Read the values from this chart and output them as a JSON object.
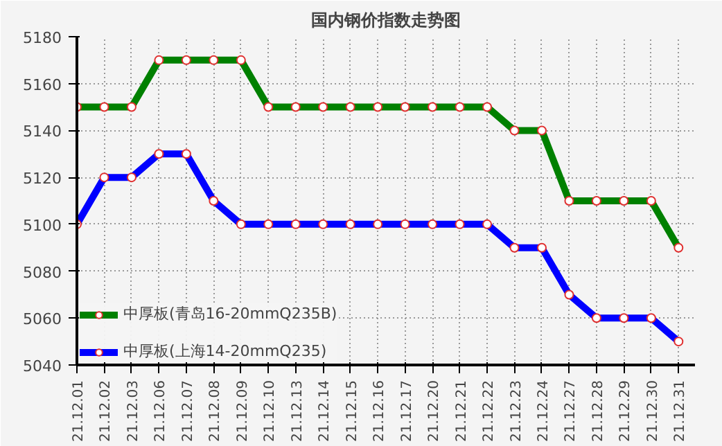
{
  "chart_data": {
    "type": "line",
    "title": "国内钢价指数走势图",
    "categories": [
      "21.12.01",
      "21.12.02",
      "21.12.03",
      "21.12.06",
      "21.12.07",
      "21.12.08",
      "21.12.09",
      "21.12.10",
      "21.12.13",
      "21.12.14",
      "21.12.15",
      "21.12.16",
      "21.12.17",
      "21.12.20",
      "21.12.21",
      "21.12.22",
      "21.12.23",
      "21.12.24",
      "21.12.27",
      "21.12.28",
      "21.12.29",
      "21.12.30",
      "21.12.31"
    ],
    "series": [
      {
        "name": "中厚板(青岛16-20mmQ235B)",
        "color": "#008000",
        "values": [
          5150,
          5150,
          5150,
          5170,
          5170,
          5170,
          5170,
          5150,
          5150,
          5150,
          5150,
          5150,
          5150,
          5150,
          5150,
          5150,
          5140,
          5140,
          5110,
          5110,
          5110,
          5110,
          5090
        ]
      },
      {
        "name": "中厚板(上海14-20mmQ235)",
        "color": "#0000ff",
        "values": [
          5100,
          5120,
          5120,
          5130,
          5130,
          5110,
          5100,
          5100,
          5100,
          5100,
          5100,
          5100,
          5100,
          5100,
          5100,
          5100,
          5090,
          5090,
          5070,
          5060,
          5060,
          5060,
          5050
        ]
      }
    ],
    "ylim": [
      5040,
      5180
    ],
    "yticks": [
      5040,
      5060,
      5080,
      5100,
      5120,
      5140,
      5160,
      5180
    ],
    "grid": true,
    "legend": "bottom left",
    "marker": "circle",
    "line_style": "solid"
  }
}
